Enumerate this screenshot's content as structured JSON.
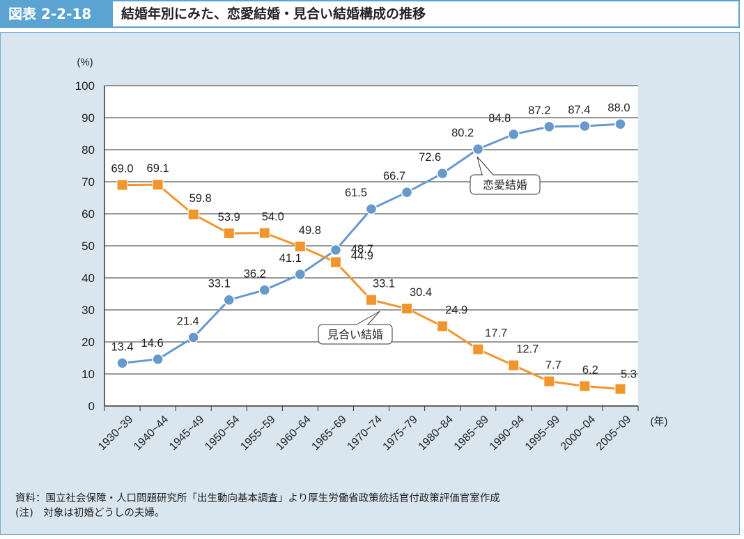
{
  "header": {
    "badge": "図表 2-2-18",
    "title": "結婚年別にみた、恋愛結婚・見合い結婚構成の推移"
  },
  "chart_data": {
    "type": "line",
    "categories": [
      "1930~39",
      "1940~44",
      "1945~49",
      "1950~54",
      "1955~59",
      "1960~64",
      "1965~69",
      "1970~74",
      "1975~79",
      "1980~84",
      "1985~89",
      "1990~94",
      "1995~99",
      "2000~04",
      "2005~09"
    ],
    "series": [
      {
        "name": "恋愛結婚",
        "color": "#6699cc",
        "marker": "circle",
        "values": [
          13.4,
          14.6,
          21.4,
          33.1,
          36.2,
          41.1,
          48.7,
          61.5,
          66.7,
          72.6,
          80.2,
          84.8,
          87.2,
          87.4,
          88.0
        ],
        "labels": [
          "13.4",
          "14.6",
          "21.4",
          "33.1",
          "36.2",
          "41.1",
          "48.7",
          "61.5",
          "66.7",
          "72.6",
          "80.2",
          "84.8",
          "87.2",
          "87.4",
          "88.0"
        ]
      },
      {
        "name": "見合い結婚",
        "color": "#f0962c",
        "marker": "square",
        "values": [
          69.0,
          69.1,
          59.8,
          53.9,
          54.0,
          49.8,
          44.9,
          33.1,
          30.4,
          24.9,
          17.7,
          12.7,
          7.7,
          6.2,
          5.3
        ],
        "labels": [
          "69.0",
          "69.1",
          "59.8",
          "53.9",
          "54.0",
          "49.8",
          "44.9",
          "33.1",
          "30.4",
          "24.9",
          "17.7",
          "12.7",
          "7.7",
          "6.2",
          "5.3"
        ]
      }
    ],
    "ylim": [
      0,
      100
    ],
    "yticks": [
      0,
      10,
      20,
      30,
      40,
      50,
      60,
      70,
      80,
      90,
      100
    ],
    "ylabel": "(%)",
    "xlabel": "(年)",
    "grid": true
  },
  "notes": {
    "source": "資料：国立社会保障・人口問題研究所「出生動向基本調査」より厚生労働省政策統括官付政策評価官室作成",
    "note": "(注)　対象は初婚どうしの夫婦。"
  }
}
